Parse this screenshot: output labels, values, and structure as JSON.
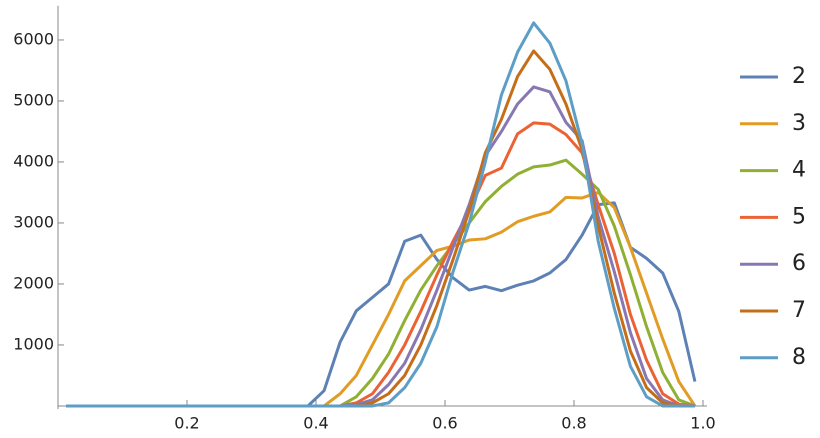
{
  "chart_data": {
    "type": "line",
    "x": [
      0.0125,
      0.0375,
      0.0625,
      0.0875,
      0.1125,
      0.1375,
      0.1625,
      0.1875,
      0.2125,
      0.2375,
      0.2625,
      0.2875,
      0.3125,
      0.3375,
      0.3625,
      0.3875,
      0.4125,
      0.4375,
      0.4625,
      0.4875,
      0.5125,
      0.5375,
      0.5625,
      0.5875,
      0.6125,
      0.6375,
      0.6625,
      0.6875,
      0.7125,
      0.7375,
      0.7625,
      0.7875,
      0.8125,
      0.8375,
      0.8625,
      0.8875,
      0.9125,
      0.9375,
      0.9625,
      0.9875
    ],
    "series": [
      {
        "name": "2",
        "color": "#5e81b5",
        "values": [
          0,
          0,
          0,
          0,
          0,
          0,
          0,
          0,
          0,
          0,
          0,
          0,
          0,
          0,
          0,
          0,
          250,
          1050,
          1560,
          1780,
          2000,
          2700,
          2800,
          2400,
          2100,
          1900,
          1960,
          1890,
          1980,
          2050,
          2180,
          2400,
          2800,
          3300,
          3330,
          2600,
          2420,
          2180,
          1550,
          400
        ]
      },
      {
        "name": "3",
        "color": "#e19c24",
        "values": [
          0,
          0,
          0,
          0,
          0,
          0,
          0,
          0,
          0,
          0,
          0,
          0,
          0,
          0,
          0,
          0,
          0,
          200,
          500,
          1000,
          1500,
          2050,
          2300,
          2550,
          2620,
          2720,
          2740,
          2850,
          3020,
          3110,
          3180,
          3420,
          3410,
          3500,
          3250,
          2600,
          1850,
          1100,
          400,
          0
        ]
      },
      {
        "name": "4",
        "color": "#8fb032",
        "values": [
          0,
          0,
          0,
          0,
          0,
          0,
          0,
          0,
          0,
          0,
          0,
          0,
          0,
          0,
          0,
          0,
          0,
          0,
          150,
          450,
          850,
          1400,
          1900,
          2300,
          2650,
          3000,
          3350,
          3600,
          3800,
          3920,
          3950,
          4030,
          3800,
          3550,
          2950,
          2150,
          1300,
          550,
          100,
          0
        ]
      },
      {
        "name": "5",
        "color": "#eb6235",
        "values": [
          0,
          0,
          0,
          0,
          0,
          0,
          0,
          0,
          0,
          0,
          0,
          0,
          0,
          0,
          0,
          0,
          0,
          0,
          50,
          200,
          550,
          1000,
          1550,
          2150,
          2700,
          3200,
          3780,
          3900,
          4460,
          4640,
          4620,
          4450,
          4150,
          3300,
          2500,
          1500,
          750,
          200,
          30,
          0
        ]
      },
      {
        "name": "6",
        "color": "#8778b3",
        "values": [
          0,
          0,
          0,
          0,
          0,
          0,
          0,
          0,
          0,
          0,
          0,
          0,
          0,
          0,
          0,
          0,
          0,
          0,
          20,
          100,
          350,
          700,
          1250,
          1900,
          2600,
          3300,
          4100,
          4500,
          4950,
          5230,
          5150,
          4650,
          4350,
          3100,
          2200,
          1200,
          450,
          100,
          0,
          0
        ]
      },
      {
        "name": "7",
        "color": "#c56e1a",
        "values": [
          0,
          0,
          0,
          0,
          0,
          0,
          0,
          0,
          0,
          0,
          0,
          0,
          0,
          0,
          0,
          0,
          0,
          0,
          0,
          50,
          200,
          500,
          1000,
          1650,
          2400,
          3200,
          4150,
          4700,
          5400,
          5820,
          5520,
          4950,
          4200,
          2950,
          1850,
          900,
          300,
          50,
          0,
          0
        ]
      },
      {
        "name": "8",
        "color": "#5d9ec7",
        "values": [
          0,
          0,
          0,
          0,
          0,
          0,
          0,
          0,
          0,
          0,
          0,
          0,
          0,
          0,
          0,
          0,
          0,
          0,
          0,
          0,
          50,
          300,
          700,
          1300,
          2200,
          3000,
          4000,
          5100,
          5800,
          6280,
          5950,
          5330,
          4300,
          2700,
          1600,
          650,
          150,
          0,
          0,
          0
        ]
      }
    ],
    "xlim": [
      0,
      1.0062
    ],
    "ylim": [
      -50,
      6560
    ],
    "xticks": [
      0.2,
      0.4,
      0.6,
      0.8,
      {
        "value": 1,
        "label": "1.0"
      }
    ],
    "yticks": [
      1000,
      2000,
      3000,
      4000,
      5000,
      6000
    ],
    "legend": "right"
  }
}
